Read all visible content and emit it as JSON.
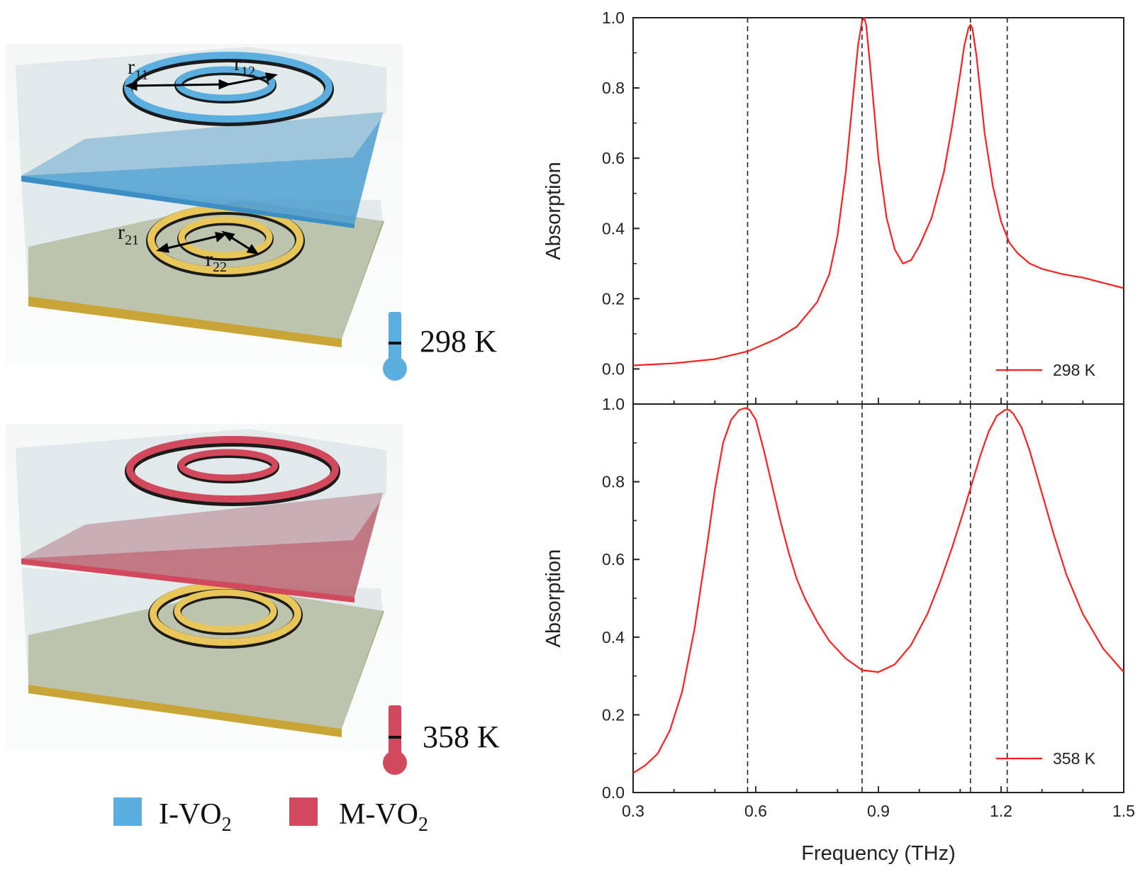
{
  "colors": {
    "insulating": "#5aaee0",
    "metallic": "#d2495e",
    "curve": "#ff1f1f",
    "gold": "#e9c65a",
    "ground": "#a7a673",
    "glass": "#cfdcdf"
  },
  "schematic": {
    "top": {
      "temperature": "298 K",
      "phase": "insulating",
      "thermometer_icon": "thermometer-cold-icon",
      "labels": {
        "r11": {
          "main": "r",
          "sub": "11"
        },
        "r12": {
          "main": "r",
          "sub": "12"
        },
        "r21": {
          "main": "r",
          "sub": "21"
        },
        "r22": {
          "main": "r",
          "sub": "22"
        }
      }
    },
    "bottom": {
      "temperature": "358 K",
      "phase": "metallic",
      "thermometer_icon": "thermometer-hot-icon"
    },
    "key": [
      {
        "prefix": "I-VO",
        "sub": "2",
        "color": "#5aaee0"
      },
      {
        "prefix": "M-VO",
        "sub": "2",
        "color": "#d2495e"
      }
    ]
  },
  "chart_data": [
    {
      "type": "line",
      "legend": "298 K",
      "ylabel": "Absorption",
      "xlabel": "",
      "xlim": [
        0.3,
        1.5
      ],
      "ylim": [
        -0.1,
        1.0
      ],
      "yticks": [
        "0.0",
        "0.2",
        "0.4",
        "0.6",
        "0.8",
        "1.0"
      ],
      "ytick_values": [
        0.0,
        0.2,
        0.4,
        0.6,
        0.8,
        1.0
      ],
      "reference_lines_x": [
        0.58,
        0.86,
        1.125,
        1.215
      ],
      "series": [
        {
          "name": "298 K",
          "x": [
            0.3,
            0.4,
            0.5,
            0.58,
            0.65,
            0.7,
            0.75,
            0.78,
            0.8,
            0.82,
            0.84,
            0.85,
            0.86,
            0.865,
            0.87,
            0.88,
            0.9,
            0.92,
            0.94,
            0.96,
            0.98,
            1.0,
            1.03,
            1.06,
            1.08,
            1.1,
            1.11,
            1.12,
            1.125,
            1.13,
            1.14,
            1.16,
            1.18,
            1.2,
            1.22,
            1.24,
            1.27,
            1.3,
            1.35,
            1.4,
            1.45,
            1.5
          ],
          "y": [
            0.01,
            0.016,
            0.028,
            0.05,
            0.085,
            0.12,
            0.19,
            0.27,
            0.38,
            0.56,
            0.8,
            0.92,
            0.99,
            1.0,
            0.98,
            0.86,
            0.6,
            0.43,
            0.34,
            0.3,
            0.31,
            0.35,
            0.43,
            0.56,
            0.69,
            0.84,
            0.92,
            0.97,
            0.98,
            0.97,
            0.89,
            0.67,
            0.52,
            0.42,
            0.36,
            0.33,
            0.3,
            0.285,
            0.27,
            0.26,
            0.245,
            0.23
          ]
        }
      ]
    },
    {
      "type": "line",
      "legend": "358 K",
      "ylabel": "Absorption",
      "xlabel": "Frequency (THz)",
      "xlim": [
        0.3,
        1.5
      ],
      "ylim": [
        0.0,
        1.0
      ],
      "xticks": [
        "0.3",
        "0.6",
        "0.9",
        "1.2",
        "1.5"
      ],
      "xtick_values": [
        0.3,
        0.6,
        0.9,
        1.2,
        1.5
      ],
      "yticks": [
        "0.0",
        "0.2",
        "0.4",
        "0.6",
        "0.8",
        "1.0"
      ],
      "ytick_values": [
        0.0,
        0.2,
        0.4,
        0.6,
        0.8,
        1.0
      ],
      "reference_lines_x": [
        0.58,
        0.86,
        1.125,
        1.215
      ],
      "series": [
        {
          "name": "358 K",
          "x": [
            0.3,
            0.33,
            0.36,
            0.39,
            0.42,
            0.45,
            0.48,
            0.5,
            0.52,
            0.54,
            0.56,
            0.575,
            0.585,
            0.6,
            0.62,
            0.64,
            0.66,
            0.68,
            0.7,
            0.72,
            0.75,
            0.78,
            0.82,
            0.86,
            0.9,
            0.94,
            0.98,
            1.02,
            1.05,
            1.08,
            1.11,
            1.13,
            1.15,
            1.17,
            1.19,
            1.21,
            1.22,
            1.23,
            1.25,
            1.27,
            1.3,
            1.33,
            1.36,
            1.4,
            1.45,
            1.5
          ],
          "y": [
            0.05,
            0.07,
            0.1,
            0.16,
            0.26,
            0.42,
            0.63,
            0.78,
            0.9,
            0.96,
            0.985,
            0.99,
            0.985,
            0.96,
            0.88,
            0.79,
            0.7,
            0.62,
            0.55,
            0.5,
            0.44,
            0.39,
            0.345,
            0.315,
            0.31,
            0.33,
            0.38,
            0.46,
            0.54,
            0.63,
            0.73,
            0.8,
            0.87,
            0.93,
            0.97,
            0.985,
            0.985,
            0.975,
            0.94,
            0.88,
            0.77,
            0.66,
            0.56,
            0.46,
            0.37,
            0.31
          ]
        }
      ]
    }
  ]
}
